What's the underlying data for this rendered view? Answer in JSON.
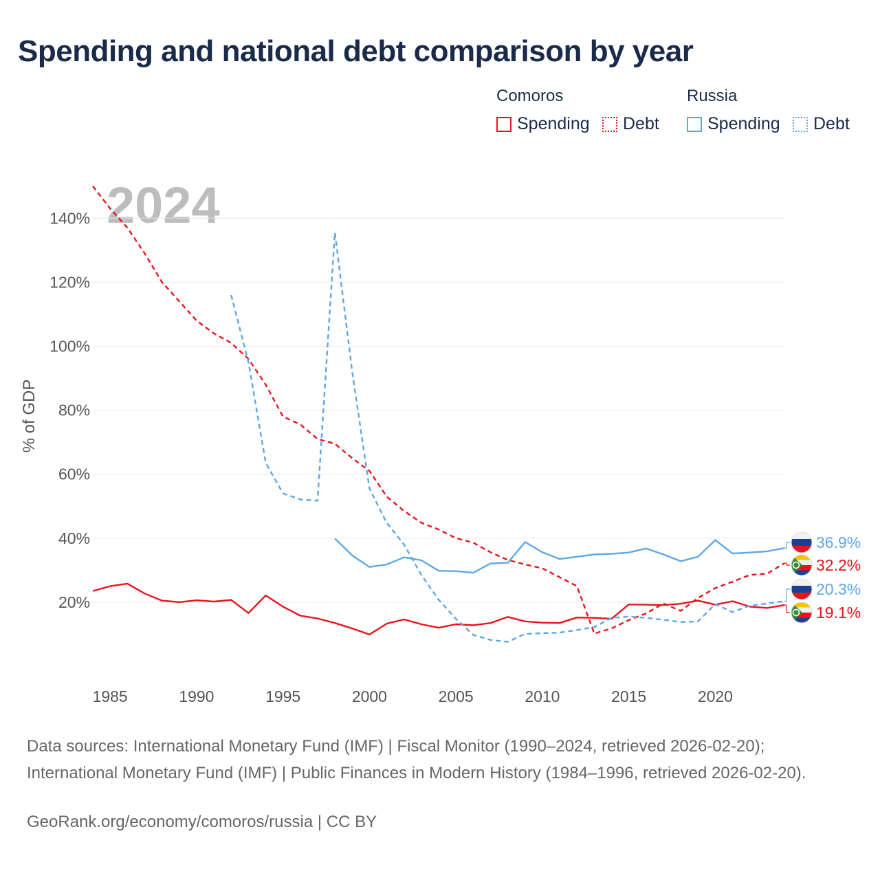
{
  "title": "Spending and national debt comparison by year",
  "legend": {
    "groups": [
      {
        "name": "Comoros",
        "spending_label": "Spending",
        "debt_label": "Debt",
        "color": "#e8141c"
      },
      {
        "name": "Russia",
        "spending_label": "Spending",
        "debt_label": "Debt",
        "color": "#5ea7e6"
      }
    ]
  },
  "year_watermark": "2024",
  "sources_text": "Data sources: International Monetary Fund (IMF) | Fiscal Monitor (1990–2024, retrieved 2026-02-20); International Monetary Fund (IMF) | Public Finances in Modern History (1984–1996, retrieved 2026-02-20).",
  "credit_text": "GeoRank.org/economy/comoros/russia | CC BY",
  "chart_data": {
    "type": "line",
    "title": "Spending and national debt comparison by year",
    "xlabel": "",
    "ylabel": "% of GDP",
    "xlim": [
      1984,
      2024
    ],
    "ylim": [
      0,
      150
    ],
    "x_ticks": [
      1985,
      1990,
      1995,
      2000,
      2005,
      2010,
      2015,
      2020
    ],
    "y_ticks": [
      20,
      40,
      60,
      80,
      100,
      120,
      140
    ],
    "y_tick_labels": [
      "20%",
      "40%",
      "60%",
      "80%",
      "100%",
      "120%",
      "140%"
    ],
    "grid": true,
    "series": [
      {
        "name": "Comoros Spending",
        "country": "Comoros",
        "metric": "Spending",
        "style": "solid",
        "color": "#e8141c",
        "x": [
          1984,
          1985,
          1986,
          1987,
          1988,
          1989,
          1990,
          1991,
          1992,
          1993,
          1994,
          1995,
          1996,
          1997,
          1998,
          1999,
          2000,
          2001,
          2002,
          2003,
          2004,
          2005,
          2006,
          2007,
          2008,
          2009,
          2010,
          2011,
          2012,
          2013,
          2014,
          2015,
          2016,
          2017,
          2018,
          2019,
          2020,
          2021,
          2022,
          2023,
          2024
        ],
        "values": [
          23.5,
          25,
          25.8,
          22.7,
          20.5,
          20,
          20.6,
          20.2,
          20.7,
          16.6,
          22.1,
          18.6,
          15.8,
          14.9,
          13.5,
          11.8,
          9.9,
          13.3,
          14.6,
          13.1,
          12,
          13.1,
          12.8,
          13.5,
          15.4,
          14,
          13.6,
          13.5,
          15.2,
          15.1,
          14.8,
          19.3,
          19.2,
          19.1,
          19.5,
          20.5,
          19.2,
          20.3,
          18.6,
          18.2,
          19.1
        ],
        "end_label": "19.1%"
      },
      {
        "name": "Comoros Debt",
        "country": "Comoros",
        "metric": "Debt",
        "style": "dashed",
        "color": "#e8141c",
        "x": [
          1984,
          1985,
          1986,
          1987,
          1988,
          1989,
          1990,
          1991,
          1992,
          1993,
          1994,
          1995,
          1996,
          1997,
          1998,
          1999,
          2000,
          2001,
          2002,
          2003,
          2004,
          2005,
          2006,
          2007,
          2008,
          2009,
          2010,
          2011,
          2012,
          2013,
          2014,
          2015,
          2016,
          2017,
          2018,
          2019,
          2020,
          2021,
          2022,
          2023,
          2024
        ],
        "values": [
          150,
          143,
          137,
          129,
          120,
          114,
          108,
          104,
          101,
          96,
          88,
          78,
          75.5,
          71,
          69.5,
          65,
          61,
          53,
          48.5,
          44.8,
          42.7,
          40,
          38.6,
          35.6,
          33.2,
          31.8,
          30.6,
          27.8,
          25,
          10.2,
          11.8,
          14.4,
          16.5,
          19.6,
          17.3,
          21.3,
          24.4,
          26.4,
          28.5,
          28.9,
          32.2
        ],
        "end_label": "32.2%"
      },
      {
        "name": "Russia Spending",
        "country": "Russia",
        "metric": "Spending",
        "style": "solid",
        "color": "#5ea7e6",
        "x": [
          1998,
          1999,
          2000,
          2001,
          2002,
          2003,
          2004,
          2005,
          2006,
          2007,
          2008,
          2009,
          2010,
          2011,
          2012,
          2013,
          2014,
          2015,
          2016,
          2017,
          2018,
          2019,
          2020,
          2021,
          2022,
          2023,
          2024
        ],
        "values": [
          39.9,
          34.6,
          31,
          31.8,
          34,
          33.1,
          29.8,
          29.7,
          29.2,
          32.1,
          32.3,
          38.8,
          35.6,
          33.5,
          34.2,
          34.9,
          35.1,
          35.5,
          36.8,
          34.9,
          32.8,
          34.2,
          39.4,
          35.2,
          35.5,
          35.9,
          36.9
        ],
        "end_label": "36.9%"
      },
      {
        "name": "Russia Debt",
        "country": "Russia",
        "metric": "Debt",
        "style": "dashed",
        "color": "#5ea7e6",
        "x": [
          1992,
          1993,
          1994,
          1995,
          1996,
          1997,
          1998,
          1999,
          2000,
          2001,
          2002,
          2003,
          2004,
          2005,
          2006,
          2007,
          2008,
          2009,
          2010,
          2011,
          2012,
          2013,
          2014,
          2015,
          2016,
          2017,
          2018,
          2019,
          2020,
          2021,
          2022,
          2023,
          2024
        ],
        "values": [
          116,
          95,
          63.5,
          54,
          52.1,
          51.7,
          135.5,
          92,
          55.5,
          44.8,
          38,
          28.5,
          20.8,
          14.8,
          9.8,
          8.2,
          7.6,
          10.1,
          10.3,
          10.5,
          11.3,
          12.2,
          15.1,
          15.5,
          15.1,
          14.5,
          13.8,
          14,
          19.4,
          16.9,
          18.9,
          19.6,
          20.3
        ],
        "end_label": "20.3%"
      }
    ]
  }
}
